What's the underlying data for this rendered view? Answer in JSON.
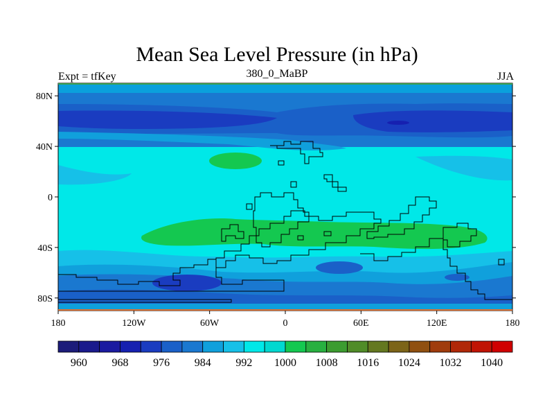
{
  "title": "Mean Sea Level Pressure (in hPa)",
  "subtitle_left": "Expt = tfKey",
  "subtitle_center": "380_0_MaBP",
  "subtitle_right": "JJA",
  "map": {
    "lon_range": [
      -180,
      180
    ],
    "lat_range": [
      -90,
      90
    ],
    "lat_ticks": [
      {
        "value": 80,
        "label": "80N"
      },
      {
        "value": 40,
        "label": "40N"
      },
      {
        "value": 0,
        "label": "0"
      },
      {
        "value": -40,
        "label": "40S"
      },
      {
        "value": -80,
        "label": "80S"
      }
    ],
    "lon_ticks": [
      {
        "value": -180,
        "label": "180"
      },
      {
        "value": -120,
        "label": "120W"
      },
      {
        "value": -60,
        "label": "60W"
      },
      {
        "value": 0,
        "label": "0"
      },
      {
        "value": 60,
        "label": "60E"
      },
      {
        "value": 120,
        "label": "120E"
      },
      {
        "value": 180,
        "label": "180"
      }
    ]
  },
  "colorbar": {
    "levels": [
      956,
      960,
      964,
      968,
      972,
      976,
      980,
      984,
      988,
      992,
      996,
      1000,
      1004,
      1008,
      1012,
      1016,
      1020,
      1024,
      1028,
      1032,
      1036,
      1040,
      1044
    ],
    "labeled": [
      {
        "index": 1,
        "label": "960"
      },
      {
        "index": 3,
        "label": "968"
      },
      {
        "index": 5,
        "label": "976"
      },
      {
        "index": 7,
        "label": "984"
      },
      {
        "index": 9,
        "label": "992"
      },
      {
        "index": 11,
        "label": "1000"
      },
      {
        "index": 13,
        "label": "1008"
      },
      {
        "index": 15,
        "label": "1016"
      },
      {
        "index": 17,
        "label": "1024"
      },
      {
        "index": 19,
        "label": "1032"
      },
      {
        "index": 21,
        "label": "1040"
      }
    ],
    "colors": [
      "#1c1c7a",
      "#1a1a8c",
      "#1a1aa0",
      "#1620b0",
      "#1a3cc0",
      "#1a60c8",
      "#1a78d0",
      "#10a0dc",
      "#16c0e8",
      "#00e8e8",
      "#00d8d0",
      "#14c850",
      "#28b040",
      "#3c9c30",
      "#508c28",
      "#647820",
      "#7c6418",
      "#905010",
      "#a03c0c",
      "#b02808",
      "#c01404",
      "#d00000"
    ]
  },
  "chart_data": {
    "type": "heatmap",
    "title": "Mean Sea Level Pressure (in hPa)",
    "units": "hPa",
    "field_bands": [
      {
        "lat_from": 90,
        "lat_to": 80,
        "approx_hPa": 996
      },
      {
        "lat_from": 80,
        "lat_to": 70,
        "approx_hPa": 988
      },
      {
        "lat_from": 70,
        "lat_to": 50,
        "approx_hPa": 978
      },
      {
        "lat_from": 50,
        "lat_to": 30,
        "approx_hPa": 996
      },
      {
        "lat_from": 30,
        "lat_to": -20,
        "approx_hPa": 1000
      },
      {
        "lat_from": -20,
        "lat_to": -40,
        "approx_hPa": 1006
      },
      {
        "lat_from": -40,
        "lat_to": -55,
        "approx_hPa": 994
      },
      {
        "lat_from": -55,
        "lat_to": -70,
        "approx_hPa": 984
      },
      {
        "lat_from": -70,
        "lat_to": -90,
        "approx_hPa": 990
      }
    ]
  }
}
